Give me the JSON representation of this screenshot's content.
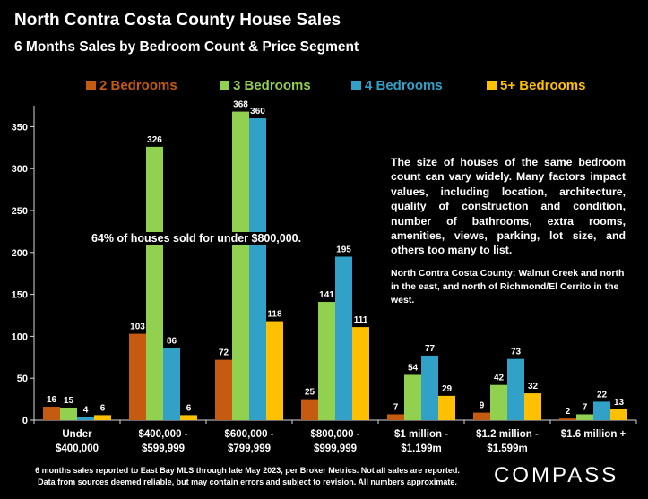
{
  "title": "North Contra Costa County House Sales",
  "subtitle": "6 Months Sales by Bedroom Count & Price Segment",
  "notes": {
    "size_note": "The size of houses of the same bedroom count can vary widely. Many factors impact values, including  location, architecture, quality of construction and condition, number of bathrooms, extra rooms, amenities, views, parking, lot size, and others too many to list.",
    "region_note": "North Contra Costa County: Walnut Creek and north in the east, and north of Richmond/El Cerrito in the west.",
    "callout": "64% of houses sold for under $800,000."
  },
  "footnote": {
    "line1": "6 months sales reported to East Bay MLS through late May 2023, per Broker Metrics. Not all sales are reported.",
    "line2": "Data from sources deemed reliable, but may contain errors and subject to revision. All numbers approximate."
  },
  "brand": "COMPASS",
  "chart_data": {
    "type": "bar",
    "categories": [
      [
        "Under",
        "$400,000"
      ],
      [
        "$400,000 -",
        "$599,999"
      ],
      [
        "$600,000 -",
        "$799,999"
      ],
      [
        "$800,000 -",
        "$999,999"
      ],
      [
        "$1 million -",
        "$1.199m"
      ],
      [
        "$1.2 million -",
        "$1.599m"
      ],
      [
        "$1.6 million +"
      ]
    ],
    "series": [
      {
        "name": "2 Bedrooms",
        "color": "#C55A11",
        "values": [
          16,
          103,
          72,
          25,
          7,
          9,
          2
        ]
      },
      {
        "name": "3 Bedrooms",
        "color": "#92D050",
        "values": [
          15,
          326,
          368,
          141,
          54,
          42,
          7
        ]
      },
      {
        "name": "4 Bedrooms",
        "color": "#31A1C8",
        "values": [
          4,
          86,
          360,
          195,
          77,
          73,
          22
        ]
      },
      {
        "name": "5+ Bedrooms",
        "color": "#FFC000",
        "values": [
          6,
          6,
          118,
          111,
          29,
          32,
          13
        ]
      }
    ],
    "yticks": [
      0,
      50,
      100,
      150,
      200,
      250,
      300,
      350
    ],
    "ylim": [
      0,
      375
    ],
    "grid": false,
    "legend_position": "top"
  }
}
